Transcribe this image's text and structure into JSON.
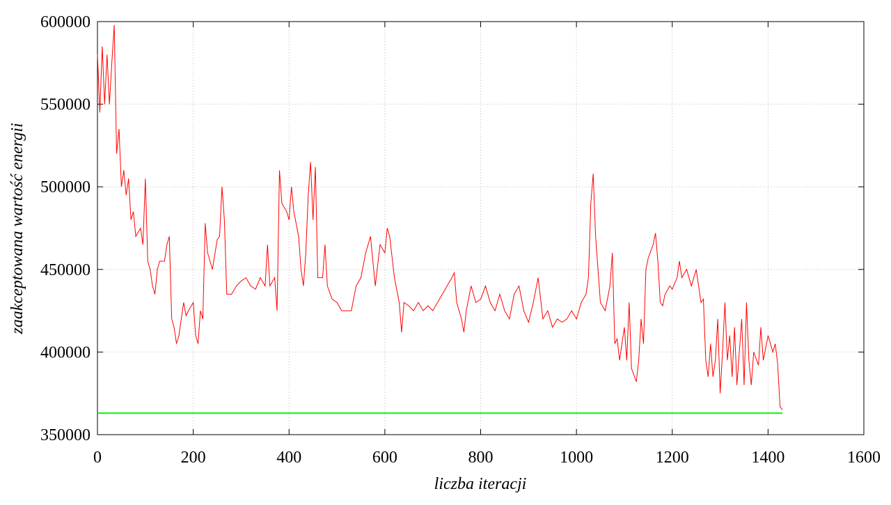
{
  "chart_data": {
    "type": "line",
    "xlabel": "liczba iteracji",
    "ylabel": "zaakceptowana wartość energii",
    "xlim": [
      0,
      1600
    ],
    "xticks": [
      0,
      200,
      400,
      600,
      800,
      1000,
      1200,
      1400,
      1600
    ],
    "ylim": [
      350000,
      600000
    ],
    "yticks": [
      350000,
      400000,
      450000,
      500000,
      550000,
      600000
    ],
    "grid": true,
    "series": [
      {
        "color": "#ff0000",
        "x": [
          0,
          5,
          10,
          15,
          20,
          25,
          30,
          35,
          40,
          45,
          50,
          55,
          60,
          65,
          70,
          75,
          80,
          90,
          95,
          100,
          105,
          110,
          115,
          120,
          125,
          130,
          140,
          145,
          150,
          155,
          160,
          165,
          170,
          175,
          180,
          185,
          190,
          200,
          205,
          210,
          215,
          220,
          225,
          230,
          240,
          250,
          255,
          260,
          265,
          270,
          280,
          290,
          300,
          310,
          320,
          330,
          340,
          350,
          355,
          360,
          370,
          375,
          380,
          385,
          395,
          400,
          405,
          410,
          420,
          425,
          430,
          435,
          440,
          445,
          450,
          455,
          460,
          470,
          475,
          480,
          490,
          500,
          510,
          520,
          530,
          540,
          550,
          560,
          570,
          580,
          590,
          600,
          605,
          610,
          620,
          630,
          635,
          640,
          650,
          660,
          670,
          680,
          690,
          700,
          710,
          720,
          730,
          740,
          745,
          750,
          760,
          765,
          770,
          780,
          790,
          800,
          810,
          820,
          830,
          840,
          850,
          860,
          870,
          880,
          890,
          900,
          910,
          920,
          930,
          940,
          950,
          960,
          970,
          980,
          990,
          1000,
          1010,
          1020,
          1025,
          1030,
          1035,
          1040,
          1050,
          1060,
          1070,
          1075,
          1080,
          1085,
          1090,
          1100,
          1105,
          1110,
          1115,
          1125,
          1130,
          1135,
          1140,
          1145,
          1150,
          1160,
          1165,
          1170,
          1175,
          1180,
          1185,
          1195,
          1200,
          1210,
          1215,
          1220,
          1230,
          1240,
          1250,
          1260,
          1265,
          1270,
          1275,
          1280,
          1285,
          1290,
          1295,
          1300,
          1305,
          1310,
          1315,
          1320,
          1325,
          1330,
          1335,
          1340,
          1345,
          1350,
          1355,
          1360,
          1365,
          1370,
          1380,
          1385,
          1390,
          1400,
          1410,
          1415,
          1420,
          1425,
          1430
        ],
        "values": [
          580000,
          545000,
          585000,
          550000,
          580000,
          550000,
          575000,
          598000,
          520000,
          535000,
          500000,
          510000,
          495000,
          505000,
          480000,
          485000,
          470000,
          475000,
          465000,
          505000,
          455000,
          450000,
          440000,
          435000,
          450000,
          455000,
          455000,
          465000,
          470000,
          420000,
          415000,
          405000,
          410000,
          420000,
          430000,
          422000,
          425000,
          430000,
          410000,
          405000,
          425000,
          420000,
          478000,
          460000,
          450000,
          468000,
          470000,
          500000,
          480000,
          435000,
          435000,
          440000,
          443000,
          445000,
          440000,
          438000,
          445000,
          440000,
          465000,
          440000,
          445000,
          425000,
          510000,
          490000,
          485000,
          480000,
          500000,
          485000,
          470000,
          450000,
          440000,
          460000,
          495000,
          515000,
          480000,
          512000,
          445000,
          445000,
          465000,
          440000,
          432000,
          430000,
          425000,
          425000,
          425000,
          440000,
          445000,
          460000,
          470000,
          440000,
          465000,
          460000,
          475000,
          470000,
          445000,
          430000,
          412000,
          430000,
          428000,
          425000,
          430000,
          425000,
          428000,
          425000,
          430000,
          435000,
          440000,
          445000,
          448000,
          430000,
          420000,
          412000,
          425000,
          440000,
          430000,
          432000,
          440000,
          430000,
          425000,
          435000,
          425000,
          420000,
          435000,
          440000,
          425000,
          418000,
          430000,
          445000,
          420000,
          425000,
          415000,
          420000,
          418000,
          420000,
          425000,
          420000,
          430000,
          435000,
          445000,
          490000,
          508000,
          470000,
          430000,
          425000,
          440000,
          460000,
          405000,
          408000,
          395000,
          415000,
          395000,
          430000,
          390000,
          382000,
          395000,
          420000,
          405000,
          450000,
          457000,
          465000,
          472000,
          455000,
          430000,
          428000,
          435000,
          440000,
          438000,
          445000,
          455000,
          445000,
          450000,
          440000,
          450000,
          430000,
          432000,
          395000,
          385000,
          405000,
          385000,
          395000,
          420000,
          375000,
          400000,
          430000,
          395000,
          410000,
          385000,
          415000,
          380000,
          400000,
          420000,
          380000,
          430000,
          395000,
          380000,
          400000,
          392000,
          415000,
          395000,
          410000,
          400000,
          405000,
          393000,
          367000,
          365000
        ]
      },
      {
        "color": "#00ff00",
        "x": [
          0,
          1430
        ],
        "values": [
          363000,
          363000
        ]
      }
    ]
  }
}
